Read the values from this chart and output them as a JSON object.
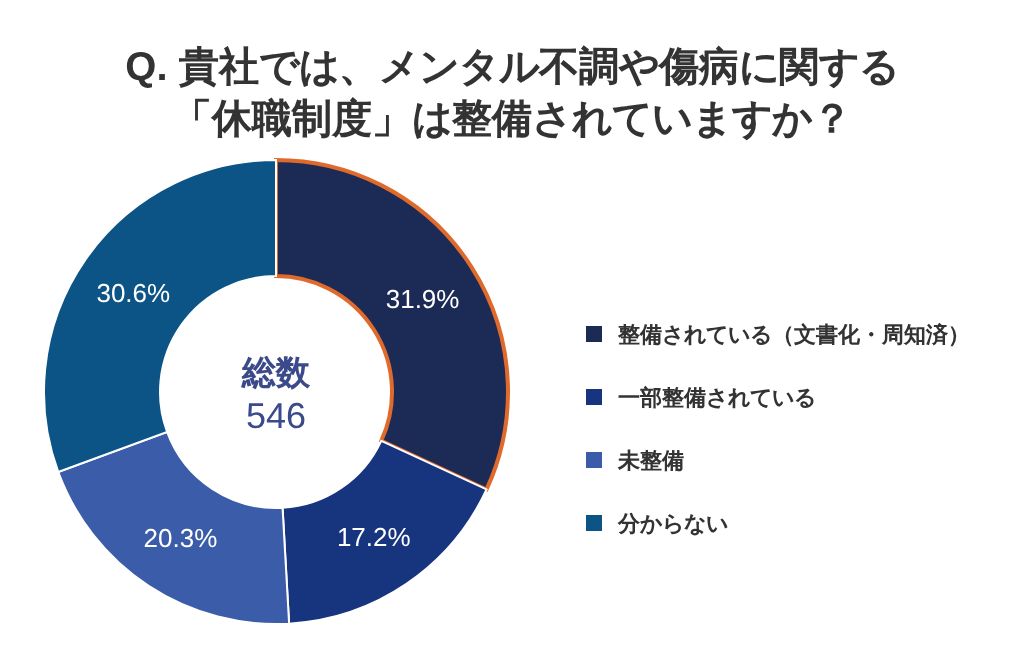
{
  "chart_data": {
    "type": "donut",
    "title": "Q. 貴社では、メンタル不調や傷病に関する",
    "subtitle": "「休職制度」は整備されていますか？",
    "categories": [
      "整備されている（文書化・周知済）",
      "一部整備されている",
      "未整備",
      "分からない"
    ],
    "values": [
      31.9,
      17.2,
      20.3,
      30.6
    ],
    "colors": [
      "#1c2b55",
      "#17347e",
      "#3b5ca8",
      "#0d5486"
    ],
    "value_labels": [
      "31.9%",
      "17.2%",
      "20.3%",
      "30.6%"
    ],
    "legend": "right",
    "annotations": [
      "総数",
      "546"
    ]
  }
}
